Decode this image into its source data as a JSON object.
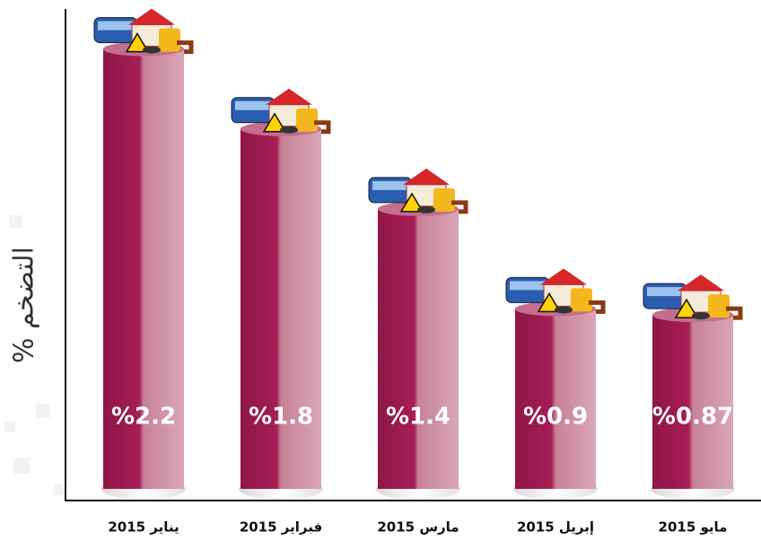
{
  "chart_data": {
    "type": "bar",
    "y_label": "التضخم %",
    "categories": [
      "يناير 2015",
      "فبراير 2015",
      "مارس 2015",
      "إبريل 2015",
      "مايو 2015"
    ],
    "values": [
      2.2,
      1.8,
      1.4,
      0.9,
      0.87
    ],
    "value_labels": [
      "%2.2",
      "%1.8",
      "%1.4",
      "%0.9",
      "%0.87"
    ],
    "color": "#a61e55",
    "ylim": [
      0,
      2.4
    ]
  }
}
